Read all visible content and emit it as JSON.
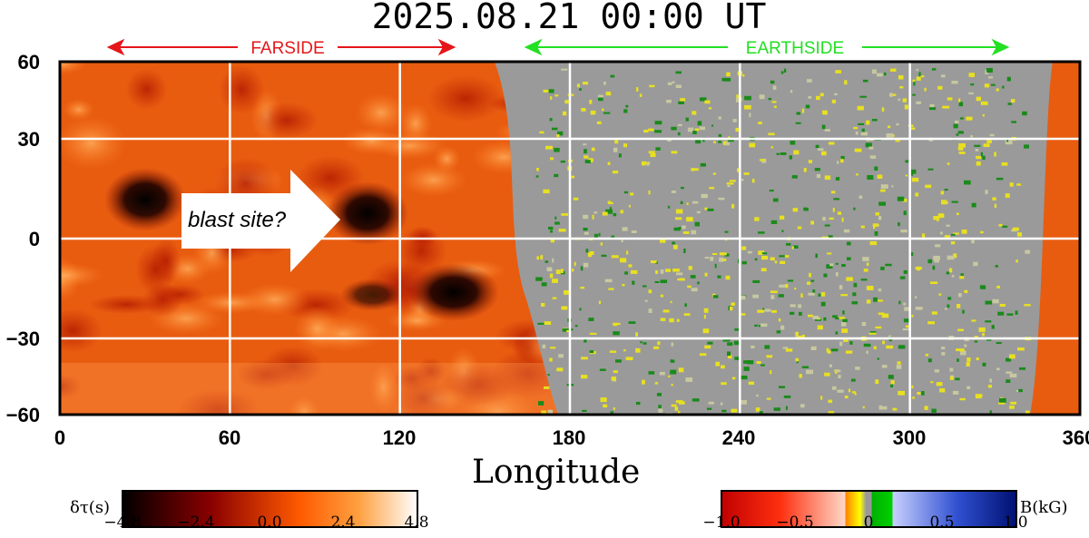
{
  "title": "2025.08.21  00:00 UT",
  "farside_label": "FARSIDE",
  "earthside_label": "EARTHSIDE",
  "colors": {
    "farside": "#e5161a",
    "earthside": "#22e022",
    "grid": "#ffffff"
  },
  "annotation": "blast site?",
  "x_axis": {
    "label": "Longitude",
    "ticks": [
      "0",
      "60",
      "120",
      "180",
      "240",
      "300",
      "360"
    ],
    "range": [
      0,
      360
    ]
  },
  "y_axis": {
    "ticks": [
      "60",
      "30",
      "0",
      "−30",
      "−60"
    ],
    "range": [
      -60,
      60
    ]
  },
  "colorbar_left": {
    "label": "δτ(s)",
    "ticks": [
      "−4.8",
      "−2.4",
      "0.0",
      "2.4",
      "4.8"
    ],
    "range": [
      -4.8,
      4.8
    ]
  },
  "colorbar_right": {
    "label": "B(kG)",
    "ticks": [
      "−1.0",
      "−0.5",
      "0",
      "0.5",
      "1.0"
    ],
    "range": [
      -1.0,
      1.0
    ]
  }
}
